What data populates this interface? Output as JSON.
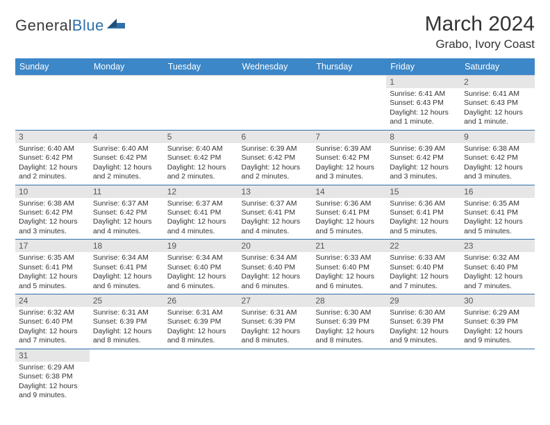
{
  "brand": {
    "part1": "General",
    "part2": "Blue"
  },
  "title": "March 2024",
  "location": "Grabo, Ivory Coast",
  "colors": {
    "header_bg": "#3c87c7",
    "header_fg": "#ffffff",
    "row_divider": "#2f6fa9",
    "daynum_bg": "#e6e6e6",
    "text": "#333333"
  },
  "day_labels": [
    "Sunday",
    "Monday",
    "Tuesday",
    "Wednesday",
    "Thursday",
    "Friday",
    "Saturday"
  ],
  "weeks": [
    [
      {
        "n": "",
        "lines": []
      },
      {
        "n": "",
        "lines": []
      },
      {
        "n": "",
        "lines": []
      },
      {
        "n": "",
        "lines": []
      },
      {
        "n": "",
        "lines": []
      },
      {
        "n": "1",
        "lines": [
          "Sunrise: 6:41 AM",
          "Sunset: 6:43 PM",
          "Daylight: 12 hours and 1 minute."
        ]
      },
      {
        "n": "2",
        "lines": [
          "Sunrise: 6:41 AM",
          "Sunset: 6:43 PM",
          "Daylight: 12 hours and 1 minute."
        ]
      }
    ],
    [
      {
        "n": "3",
        "lines": [
          "Sunrise: 6:40 AM",
          "Sunset: 6:42 PM",
          "Daylight: 12 hours and 2 minutes."
        ]
      },
      {
        "n": "4",
        "lines": [
          "Sunrise: 6:40 AM",
          "Sunset: 6:42 PM",
          "Daylight: 12 hours and 2 minutes."
        ]
      },
      {
        "n": "5",
        "lines": [
          "Sunrise: 6:40 AM",
          "Sunset: 6:42 PM",
          "Daylight: 12 hours and 2 minutes."
        ]
      },
      {
        "n": "6",
        "lines": [
          "Sunrise: 6:39 AM",
          "Sunset: 6:42 PM",
          "Daylight: 12 hours and 2 minutes."
        ]
      },
      {
        "n": "7",
        "lines": [
          "Sunrise: 6:39 AM",
          "Sunset: 6:42 PM",
          "Daylight: 12 hours and 3 minutes."
        ]
      },
      {
        "n": "8",
        "lines": [
          "Sunrise: 6:39 AM",
          "Sunset: 6:42 PM",
          "Daylight: 12 hours and 3 minutes."
        ]
      },
      {
        "n": "9",
        "lines": [
          "Sunrise: 6:38 AM",
          "Sunset: 6:42 PM",
          "Daylight: 12 hours and 3 minutes."
        ]
      }
    ],
    [
      {
        "n": "10",
        "lines": [
          "Sunrise: 6:38 AM",
          "Sunset: 6:42 PM",
          "Daylight: 12 hours and 3 minutes."
        ]
      },
      {
        "n": "11",
        "lines": [
          "Sunrise: 6:37 AM",
          "Sunset: 6:42 PM",
          "Daylight: 12 hours and 4 minutes."
        ]
      },
      {
        "n": "12",
        "lines": [
          "Sunrise: 6:37 AM",
          "Sunset: 6:41 PM",
          "Daylight: 12 hours and 4 minutes."
        ]
      },
      {
        "n": "13",
        "lines": [
          "Sunrise: 6:37 AM",
          "Sunset: 6:41 PM",
          "Daylight: 12 hours and 4 minutes."
        ]
      },
      {
        "n": "14",
        "lines": [
          "Sunrise: 6:36 AM",
          "Sunset: 6:41 PM",
          "Daylight: 12 hours and 5 minutes."
        ]
      },
      {
        "n": "15",
        "lines": [
          "Sunrise: 6:36 AM",
          "Sunset: 6:41 PM",
          "Daylight: 12 hours and 5 minutes."
        ]
      },
      {
        "n": "16",
        "lines": [
          "Sunrise: 6:35 AM",
          "Sunset: 6:41 PM",
          "Daylight: 12 hours and 5 minutes."
        ]
      }
    ],
    [
      {
        "n": "17",
        "lines": [
          "Sunrise: 6:35 AM",
          "Sunset: 6:41 PM",
          "Daylight: 12 hours and 5 minutes."
        ]
      },
      {
        "n": "18",
        "lines": [
          "Sunrise: 6:34 AM",
          "Sunset: 6:41 PM",
          "Daylight: 12 hours and 6 minutes."
        ]
      },
      {
        "n": "19",
        "lines": [
          "Sunrise: 6:34 AM",
          "Sunset: 6:40 PM",
          "Daylight: 12 hours and 6 minutes."
        ]
      },
      {
        "n": "20",
        "lines": [
          "Sunrise: 6:34 AM",
          "Sunset: 6:40 PM",
          "Daylight: 12 hours and 6 minutes."
        ]
      },
      {
        "n": "21",
        "lines": [
          "Sunrise: 6:33 AM",
          "Sunset: 6:40 PM",
          "Daylight: 12 hours and 6 minutes."
        ]
      },
      {
        "n": "22",
        "lines": [
          "Sunrise: 6:33 AM",
          "Sunset: 6:40 PM",
          "Daylight: 12 hours and 7 minutes."
        ]
      },
      {
        "n": "23",
        "lines": [
          "Sunrise: 6:32 AM",
          "Sunset: 6:40 PM",
          "Daylight: 12 hours and 7 minutes."
        ]
      }
    ],
    [
      {
        "n": "24",
        "lines": [
          "Sunrise: 6:32 AM",
          "Sunset: 6:40 PM",
          "Daylight: 12 hours and 7 minutes."
        ]
      },
      {
        "n": "25",
        "lines": [
          "Sunrise: 6:31 AM",
          "Sunset: 6:39 PM",
          "Daylight: 12 hours and 8 minutes."
        ]
      },
      {
        "n": "26",
        "lines": [
          "Sunrise: 6:31 AM",
          "Sunset: 6:39 PM",
          "Daylight: 12 hours and 8 minutes."
        ]
      },
      {
        "n": "27",
        "lines": [
          "Sunrise: 6:31 AM",
          "Sunset: 6:39 PM",
          "Daylight: 12 hours and 8 minutes."
        ]
      },
      {
        "n": "28",
        "lines": [
          "Sunrise: 6:30 AM",
          "Sunset: 6:39 PM",
          "Daylight: 12 hours and 8 minutes."
        ]
      },
      {
        "n": "29",
        "lines": [
          "Sunrise: 6:30 AM",
          "Sunset: 6:39 PM",
          "Daylight: 12 hours and 9 minutes."
        ]
      },
      {
        "n": "30",
        "lines": [
          "Sunrise: 6:29 AM",
          "Sunset: 6:39 PM",
          "Daylight: 12 hours and 9 minutes."
        ]
      }
    ],
    [
      {
        "n": "31",
        "lines": [
          "Sunrise: 6:29 AM",
          "Sunset: 6:38 PM",
          "Daylight: 12 hours and 9 minutes."
        ]
      },
      {
        "n": "",
        "lines": []
      },
      {
        "n": "",
        "lines": []
      },
      {
        "n": "",
        "lines": []
      },
      {
        "n": "",
        "lines": []
      },
      {
        "n": "",
        "lines": []
      },
      {
        "n": "",
        "lines": []
      }
    ]
  ]
}
